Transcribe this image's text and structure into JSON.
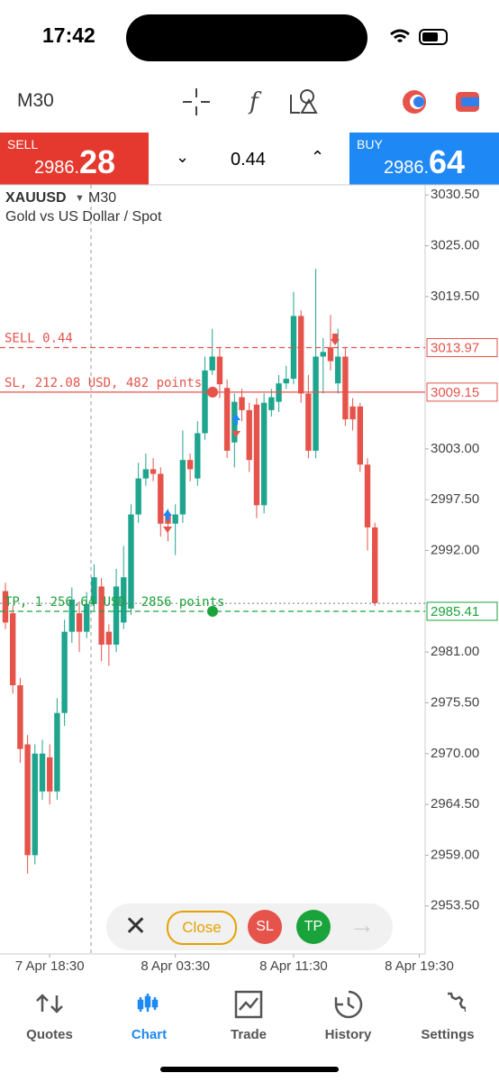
{
  "status": {
    "time": "17:42"
  },
  "toolbar": {
    "timeframe": "M30"
  },
  "trade_panel": {
    "sell_label": "SELL",
    "sell_price": "2986.",
    "sell_price_big": "28",
    "volume": "0.44",
    "buy_label": "BUY",
    "buy_price": "2986.",
    "buy_price_big": "64"
  },
  "chart_data": {
    "type": "candlestick",
    "symbol": "XAUUSD",
    "timeframe": "M30",
    "subtitle": "Gold vs US Dollar / Spot",
    "up_color": "#1fa58e",
    "down_color": "#e5534b",
    "open": [
      2987.6,
      2985.2,
      2977.4,
      2971.0,
      2959.0,
      2965.9,
      2969.6,
      2965.9,
      2974.4,
      2983.2,
      2985.2,
      2983.2,
      2986.2,
      2988.1,
      2983.2,
      2981.8,
      2984.2,
      2985.7,
      2995.9,
      2999.8,
      3000.8,
      3000.3,
      2995.9,
      2994.9,
      2995.9,
      3001.8,
      2999.8,
      3004.7,
      3011.5,
      3013.0,
      3009.6,
      3003.7,
      3008.6,
      3007.2,
      3007.8,
      2996.9,
      3007.2,
      3008.1,
      3010.1,
      3010.6,
      3017.4,
      3009.0,
      3002.8,
      3013.0,
      3014.0,
      3010.1,
      3013.0,
      3007.6,
      3007.6,
      3001.3,
      2994.5
    ],
    "high": [
      2988.5,
      2986.0,
      2978.2,
      2972.0,
      2971.0,
      2971.5,
      2971.0,
      2976.0,
      2984.5,
      2988.0,
      2986.5,
      2987.5,
      2990.5,
      2989.0,
      2984.0,
      2990.0,
      2992.5,
      2997.0,
      3001.5,
      3002.5,
      3002.0,
      3001.0,
      2996.5,
      2997.0,
      3005.0,
      3002.5,
      3006.0,
      3013.0,
      3016.0,
      3014.0,
      3010.5,
      3009.0,
      3009.5,
      3008.0,
      3008.5,
      3009.0,
      3009.5,
      3011.0,
      3012.0,
      3020.0,
      3018.0,
      3011.0,
      3022.5,
      3015.0,
      3017.5,
      3016.0,
      3014.0,
      3008.5,
      3008.0,
      3002.0,
      2995.0
    ],
    "low": [
      2983.5,
      2976.5,
      2969.0,
      2957.0,
      2958.0,
      2965.0,
      2964.5,
      2965.0,
      2973.0,
      2982.0,
      2981.0,
      2982.5,
      2985.5,
      2980.0,
      2979.5,
      2981.0,
      2983.5,
      2985.0,
      2995.0,
      2999.0,
      2999.5,
      2993.5,
      2993.0,
      2991.5,
      2995.0,
      2999.5,
      2999.0,
      3004.0,
      3011.0,
      3008.5,
      3002.0,
      3001.0,
      3006.0,
      3000.5,
      2995.5,
      2996.0,
      3006.5,
      3007.0,
      3009.5,
      3010.0,
      3008.0,
      3002.0,
      3002.0,
      3009.0,
      3011.5,
      3009.0,
      3005.5,
      3005.0,
      3000.5,
      2992.0,
      2986.0
    ],
    "close": [
      2984.2,
      2977.4,
      2970.5,
      2959.0,
      2970.0,
      2970.0,
      2965.9,
      2974.4,
      2983.2,
      2986.7,
      2983.2,
      2986.2,
      2989.1,
      2981.8,
      2981.8,
      2988.1,
      2989.1,
      2995.9,
      2999.8,
      3000.8,
      3000.3,
      2994.9,
      2994.9,
      2995.9,
      3001.8,
      3000.8,
      3004.7,
      3011.5,
      3013.0,
      3010.0,
      3002.8,
      3008.1,
      3007.2,
      3001.8,
      2996.9,
      3008.0,
      3008.6,
      3010.1,
      3010.6,
      3017.4,
      3009.0,
      3002.8,
      3013.0,
      3013.5,
      3012.5,
      3013.0,
      3006.2,
      3006.2,
      3001.3,
      2994.5,
      2986.3
    ],
    "xlim": [
      -0.73,
      56.8
    ],
    "xticks": [
      {
        "value": 6,
        "label": "7 Apr 18:30"
      },
      {
        "value": 23,
        "label": "8 Apr 03:30"
      },
      {
        "value": 39,
        "label": "8 Apr 11:30"
      },
      {
        "value": 56,
        "label": "8 Apr 19:30"
      }
    ],
    "ylim": [
      2948.3,
      3031.6
    ],
    "yticks": [
      {
        "value": 3030.5,
        "label": "3030.50"
      },
      {
        "value": 3025,
        "label": "3025.00"
      },
      {
        "value": 3019.5,
        "label": "3019.50"
      },
      {
        "value": 3003,
        "label": "3003.00"
      },
      {
        "value": 2997.5,
        "label": "2997.50"
      },
      {
        "value": 2992,
        "label": "2992.00"
      },
      {
        "value": 2981,
        "label": "2981.00"
      },
      {
        "value": 2975.5,
        "label": "2975.50"
      },
      {
        "value": 2970,
        "label": "2970.00"
      },
      {
        "value": 2964.5,
        "label": "2964.50"
      },
      {
        "value": 2959,
        "label": "2959.00"
      },
      {
        "value": 2953.5,
        "label": "2953.50"
      }
    ],
    "bid": 2986.28,
    "levels": [
      {
        "name": "SELL 0.44",
        "value": 3013.97,
        "color": "#e5534b",
        "style": "dashed",
        "handle": false
      },
      {
        "name": "SL, 212.08 USD, 482 points",
        "value": 3009.15,
        "color": "#e5534b",
        "style": "solid",
        "handle": true
      },
      {
        "name": "TP, 1 256.64 USD, 2856 points",
        "value": 2985.41,
        "color": "#1aa33b",
        "style": "dashed",
        "handle": true
      }
    ]
  },
  "order_bar": {
    "close": "Close",
    "sl": "SL",
    "tp": "TP"
  },
  "nav": {
    "items": [
      "Quotes",
      "Chart",
      "Trade",
      "History",
      "Settings"
    ],
    "active": 1
  }
}
